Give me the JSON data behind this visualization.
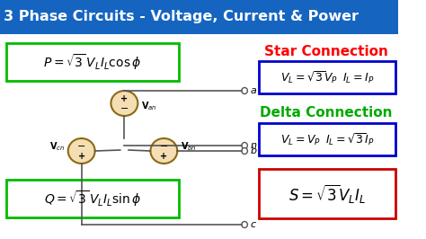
{
  "title": "3 Phase Circuits - Voltage, Current & Power",
  "title_bg": "#1565C0",
  "title_color": "#FFFFFF",
  "main_bg": "#FFFFFF",
  "star_label": "Star Connection",
  "star_color": "#FF0000",
  "delta_label": "Delta Connection",
  "delta_color": "#00AA00",
  "box_border_green": "#00BB00",
  "box_border_blue": "#0000CC",
  "box_border_red": "#CC0000",
  "box_fill": "#FFFFFF",
  "ellipse_fill": "#F5DEB3",
  "ellipse_edge": "#8B6914",
  "line_color": "#555555",
  "text_color": "#000000"
}
